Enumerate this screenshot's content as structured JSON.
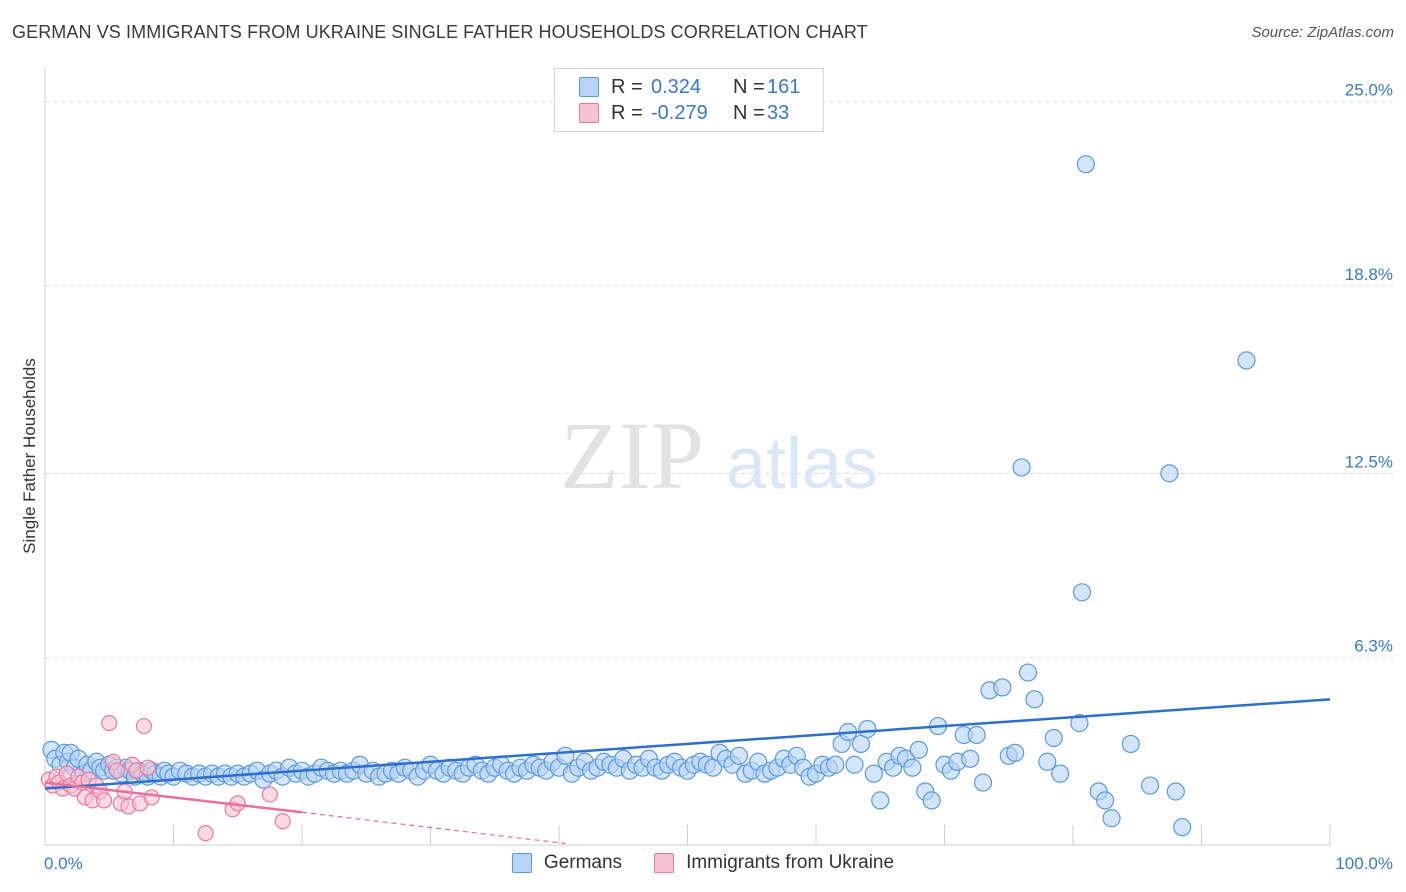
{
  "title": "GERMAN VS IMMIGRANTS FROM UKRAINE SINGLE FATHER HOUSEHOLDS CORRELATION CHART",
  "source": "Source: ZipAtlas.com",
  "watermark": {
    "zip": "ZIP",
    "atlas": "atlas"
  },
  "colors": {
    "blue": "#5b9ae0",
    "blue_fill": "#b7d3f5",
    "pink": "#e87aa0",
    "pink_fill": "#f6c3d3",
    "grid": "#d8d8d8",
    "axis_text": "#3a78c9",
    "blue_line": "#2f6fcc",
    "pink_line": "#e8709a"
  },
  "legend": {
    "rows": [
      {
        "r_label": "R =",
        "r_value": "0.324",
        "n_label": "N =",
        "n_value": "161"
      },
      {
        "r_label": "R =",
        "r_value": "-0.279",
        "n_label": "N =",
        "n_value": "33"
      }
    ]
  },
  "bottom_legend": {
    "germans": "Germans",
    "ukraine": "Immigrants from Ukraine"
  },
  "chart_data": {
    "type": "scatter",
    "title": "GERMAN VS IMMIGRANTS FROM UKRAINE SINGLE FATHER HOUSEHOLDS CORRELATION CHART",
    "xlabel": "",
    "ylabel": "Single Father Households",
    "xlim": [
      0,
      100
    ],
    "ylim": [
      0,
      26
    ],
    "x_tick_labels": [
      "0.0%",
      "100.0%"
    ],
    "y_ticks": [
      6.3,
      12.5,
      18.8,
      25.0
    ],
    "y_tick_labels": [
      "6.3%",
      "12.5%",
      "18.8%",
      "25.0%"
    ],
    "grid": true,
    "series": [
      {
        "name": "Germans",
        "r": 0.324,
        "n": 161,
        "trend": {
          "x": [
            0,
            100
          ],
          "y": [
            1.9,
            4.9
          ]
        },
        "points": [
          [
            0.5,
            3.2
          ],
          [
            0.8,
            2.9
          ],
          [
            1.2,
            2.7
          ],
          [
            1.5,
            3.1
          ],
          [
            1.8,
            2.8
          ],
          [
            2.0,
            3.1
          ],
          [
            2.3,
            2.6
          ],
          [
            2.6,
            2.9
          ],
          [
            3.0,
            2.4
          ],
          [
            3.3,
            2.7
          ],
          [
            3.6,
            2.5
          ],
          [
            4.0,
            2.8
          ],
          [
            4.3,
            2.6
          ],
          [
            4.6,
            2.5
          ],
          [
            5.0,
            2.7
          ],
          [
            5.3,
            2.5
          ],
          [
            5.6,
            2.6
          ],
          [
            6.0,
            2.4
          ],
          [
            6.3,
            2.6
          ],
          [
            6.6,
            2.5
          ],
          [
            7.0,
            2.3
          ],
          [
            7.3,
            2.5
          ],
          [
            7.6,
            2.4
          ],
          [
            8.0,
            2.3
          ],
          [
            8.3,
            2.5
          ],
          [
            8.6,
            2.4
          ],
          [
            9.0,
            2.3
          ],
          [
            9.3,
            2.5
          ],
          [
            9.6,
            2.4
          ],
          [
            10.0,
            2.3
          ],
          [
            10.5,
            2.5
          ],
          [
            11.0,
            2.4
          ],
          [
            11.5,
            2.3
          ],
          [
            12.0,
            2.4
          ],
          [
            12.5,
            2.3
          ],
          [
            13.0,
            2.4
          ],
          [
            13.5,
            2.3
          ],
          [
            14.0,
            2.4
          ],
          [
            14.5,
            2.3
          ],
          [
            15.0,
            2.4
          ],
          [
            15.5,
            2.3
          ],
          [
            16.0,
            2.4
          ],
          [
            16.5,
            2.5
          ],
          [
            17.0,
            2.2
          ],
          [
            17.5,
            2.4
          ],
          [
            18.0,
            2.5
          ],
          [
            18.5,
            2.3
          ],
          [
            19.0,
            2.6
          ],
          [
            19.5,
            2.4
          ],
          [
            20.0,
            2.5
          ],
          [
            20.5,
            2.3
          ],
          [
            21.0,
            2.4
          ],
          [
            21.5,
            2.6
          ],
          [
            22.0,
            2.5
          ],
          [
            22.5,
            2.4
          ],
          [
            23.0,
            2.5
          ],
          [
            23.5,
            2.4
          ],
          [
            24.0,
            2.5
          ],
          [
            24.5,
            2.7
          ],
          [
            25.0,
            2.4
          ],
          [
            25.5,
            2.5
          ],
          [
            26.0,
            2.3
          ],
          [
            26.5,
            2.4
          ],
          [
            27.0,
            2.5
          ],
          [
            27.5,
            2.4
          ],
          [
            28.0,
            2.6
          ],
          [
            28.5,
            2.5
          ],
          [
            29.0,
            2.3
          ],
          [
            29.5,
            2.5
          ],
          [
            30.0,
            2.7
          ],
          [
            30.5,
            2.5
          ],
          [
            31.0,
            2.4
          ],
          [
            31.5,
            2.6
          ],
          [
            32.0,
            2.5
          ],
          [
            32.5,
            2.4
          ],
          [
            33.0,
            2.6
          ],
          [
            33.5,
            2.7
          ],
          [
            34.0,
            2.5
          ],
          [
            34.5,
            2.4
          ],
          [
            35.0,
            2.6
          ],
          [
            35.5,
            2.7
          ],
          [
            36.0,
            2.5
          ],
          [
            36.5,
            2.4
          ],
          [
            37.0,
            2.6
          ],
          [
            37.5,
            2.5
          ],
          [
            38.0,
            2.7
          ],
          [
            38.5,
            2.6
          ],
          [
            39.0,
            2.5
          ],
          [
            39.5,
            2.8
          ],
          [
            40.0,
            2.6
          ],
          [
            40.5,
            3.0
          ],
          [
            41.0,
            2.4
          ],
          [
            41.5,
            2.6
          ],
          [
            42.0,
            2.8
          ],
          [
            42.5,
            2.5
          ],
          [
            43.0,
            2.6
          ],
          [
            43.5,
            2.8
          ],
          [
            44.0,
            2.7
          ],
          [
            44.5,
            2.6
          ],
          [
            45.0,
            2.9
          ],
          [
            45.5,
            2.5
          ],
          [
            46.0,
            2.7
          ],
          [
            46.5,
            2.6
          ],
          [
            47.0,
            2.9
          ],
          [
            47.5,
            2.6
          ],
          [
            48.0,
            2.5
          ],
          [
            48.5,
            2.7
          ],
          [
            49.0,
            2.8
          ],
          [
            49.5,
            2.6
          ],
          [
            50.0,
            2.5
          ],
          [
            50.5,
            2.7
          ],
          [
            51.0,
            2.8
          ],
          [
            51.5,
            2.7
          ],
          [
            52.0,
            2.6
          ],
          [
            52.5,
            3.1
          ],
          [
            53.0,
            2.9
          ],
          [
            53.5,
            2.7
          ],
          [
            54.0,
            3.0
          ],
          [
            54.5,
            2.4
          ],
          [
            55.0,
            2.5
          ],
          [
            55.5,
            2.8
          ],
          [
            56.0,
            2.4
          ],
          [
            56.5,
            2.5
          ],
          [
            57.0,
            2.6
          ],
          [
            57.5,
            2.9
          ],
          [
            58.0,
            2.7
          ],
          [
            58.5,
            3.0
          ],
          [
            59.0,
            2.6
          ],
          [
            59.5,
            2.3
          ],
          [
            60.0,
            2.4
          ],
          [
            60.5,
            2.7
          ],
          [
            61.0,
            2.6
          ],
          [
            61.5,
            2.7
          ],
          [
            62.0,
            3.4
          ],
          [
            62.5,
            3.8
          ],
          [
            63.0,
            2.7
          ],
          [
            63.5,
            3.4
          ],
          [
            64.0,
            3.9
          ],
          [
            64.5,
            2.4
          ],
          [
            65.0,
            1.5
          ],
          [
            65.5,
            2.8
          ],
          [
            66.0,
            2.6
          ],
          [
            66.5,
            3.0
          ],
          [
            67.0,
            2.9
          ],
          [
            67.5,
            2.6
          ],
          [
            68.0,
            3.2
          ],
          [
            68.5,
            1.8
          ],
          [
            69.0,
            1.5
          ],
          [
            69.5,
            4.0
          ],
          [
            70.0,
            2.7
          ],
          [
            70.5,
            2.5
          ],
          [
            71.0,
            2.8
          ],
          [
            71.5,
            3.7
          ],
          [
            72.0,
            2.9
          ],
          [
            72.5,
            3.7
          ],
          [
            73.0,
            2.1
          ],
          [
            73.5,
            5.2
          ],
          [
            74.5,
            5.3
          ],
          [
            75.0,
            3.0
          ],
          [
            75.5,
            3.1
          ],
          [
            76.0,
            12.7
          ],
          [
            76.5,
            5.8
          ],
          [
            77.0,
            4.9
          ],
          [
            78.0,
            2.8
          ],
          [
            78.5,
            3.6
          ],
          [
            79.0,
            2.4
          ],
          [
            80.5,
            4.1
          ],
          [
            80.7,
            8.5
          ],
          [
            81.0,
            22.9
          ],
          [
            82.0,
            1.8
          ],
          [
            82.5,
            1.5
          ],
          [
            83.0,
            0.9
          ],
          [
            84.5,
            3.4
          ],
          [
            86.0,
            2.0
          ],
          [
            87.5,
            12.5
          ],
          [
            88.0,
            1.8
          ],
          [
            88.5,
            0.6
          ],
          [
            93.5,
            16.3
          ]
        ]
      },
      {
        "name": "Immigrants from Ukraine",
        "r": -0.279,
        "n": 33,
        "trend_solid": {
          "x": [
            0,
            20
          ],
          "y": [
            2.1,
            1.1
          ]
        },
        "trend_dashed": {
          "x": [
            20,
            40.5
          ],
          "y": [
            1.1,
            0.05
          ]
        },
        "points": [
          [
            0.3,
            2.2
          ],
          [
            0.6,
            2.0
          ],
          [
            0.9,
            2.3
          ],
          [
            1.1,
            2.1
          ],
          [
            1.4,
            1.9
          ],
          [
            1.7,
            2.4
          ],
          [
            2.0,
            2.0
          ],
          [
            2.3,
            1.9
          ],
          [
            2.6,
            2.3
          ],
          [
            2.9,
            2.1
          ],
          [
            3.1,
            1.6
          ],
          [
            3.4,
            2.2
          ],
          [
            3.7,
            1.5
          ],
          [
            4.0,
            2.0
          ],
          [
            4.3,
            1.8
          ],
          [
            4.6,
            1.5
          ],
          [
            5.0,
            4.1
          ],
          [
            5.3,
            2.8
          ],
          [
            5.6,
            2.5
          ],
          [
            5.9,
            1.4
          ],
          [
            6.2,
            1.8
          ],
          [
            6.5,
            1.3
          ],
          [
            6.8,
            2.7
          ],
          [
            7.1,
            2.5
          ],
          [
            7.4,
            1.4
          ],
          [
            7.7,
            4.0
          ],
          [
            8.0,
            2.6
          ],
          [
            8.3,
            1.6
          ],
          [
            12.5,
            0.4
          ],
          [
            14.6,
            1.2
          ],
          [
            15.0,
            1.4
          ],
          [
            17.5,
            1.7
          ],
          [
            18.5,
            0.8
          ]
        ]
      }
    ]
  }
}
